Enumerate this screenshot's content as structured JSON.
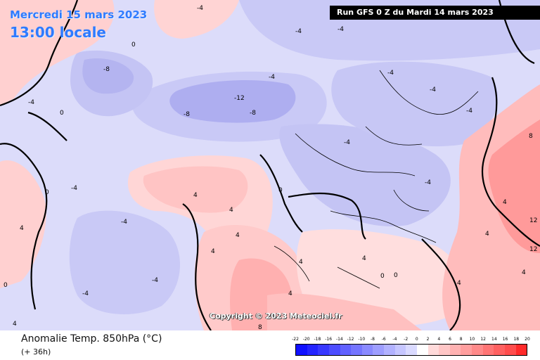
{
  "header": {
    "date_line": "Mercredi 15 mars 2023",
    "time_line": "13:00 locale",
    "run_info": "Run GFS 0 Z du Mardi 14 mars 2023"
  },
  "copyright": "Copyright © 2023 Meteociel.fr",
  "legend": {
    "title": "Anomalie Temp. 850hPa (°C)",
    "subtitle": "(+ 36h)",
    "ticks": [
      "-22",
      "-20",
      "-18",
      "-16",
      "-14",
      "-12",
      "-10",
      "-8",
      "-6",
      "-4",
      "-2",
      "0",
      "2",
      "4",
      "6",
      "8",
      "10",
      "12",
      "14",
      "16",
      "18",
      "20"
    ],
    "colors": [
      "#1010ff",
      "#2424ff",
      "#3838ff",
      "#4d4dff",
      "#6161ff",
      "#7575ff",
      "#8a8aff",
      "#9e9eff",
      "#b2b2ff",
      "#c6c6ff",
      "#dadaff",
      "#ffffff",
      "#ffdada",
      "#ffc6c6",
      "#ffb2b2",
      "#ff9e9e",
      "#ff8a8a",
      "#ff7575",
      "#ff6161",
      "#ff4d4d",
      "#ff2a2a"
    ]
  },
  "map_labels": [
    "-12",
    "-8",
    "-8",
    "-8",
    "-4",
    "-4",
    "-4",
    "-4",
    "-4",
    "-4",
    "-4",
    "-4",
    "-4",
    "-4",
    "-4",
    "0",
    "0",
    "0",
    "0",
    "0",
    "0",
    "4",
    "4",
    "4",
    "4",
    "4",
    "4",
    "4",
    "4",
    "4",
    "4",
    "4",
    "4",
    "12",
    "12",
    "8",
    "8",
    "-4",
    "-4",
    "-4",
    "4",
    "0"
  ]
}
